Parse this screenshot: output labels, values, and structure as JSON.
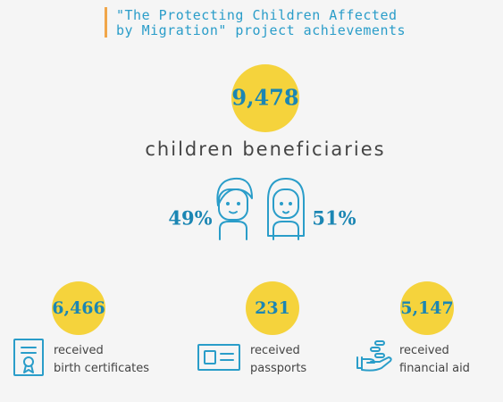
{
  "header": {
    "title_lines": [
      "\"The Protecting Children Affected",
      "by Migration\" project achievements"
    ]
  },
  "total": {
    "value": "9,478",
    "label": "children beneficiaries"
  },
  "gender": {
    "boys": "49%",
    "girls": "51%"
  },
  "stats": [
    {
      "value": "6,466",
      "label_lines": [
        "received",
        "birth certificates"
      ]
    },
    {
      "value": "231",
      "label_lines": [
        "received",
        "passports"
      ]
    },
    {
      "value": "5,147",
      "label_lines": [
        "received",
        "financial aid"
      ]
    }
  ]
}
